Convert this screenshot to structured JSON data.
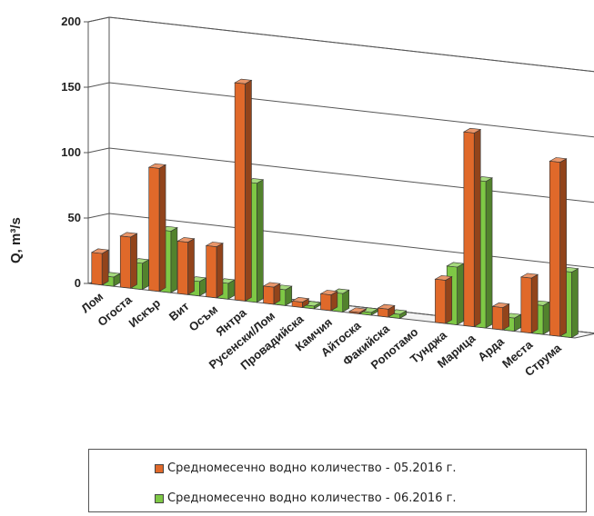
{
  "chart_data": {
    "type": "bar",
    "ylabel": "Q, m³/s",
    "ylim": [
      0,
      200
    ],
    "yticks": [
      "0",
      "50",
      "100",
      "150",
      "200"
    ],
    "categories": [
      "Лом",
      "Огоста",
      "Искър",
      "Вит",
      "Осъм",
      "Янтра",
      "Русенски/Лом",
      "Провадийска",
      "Камчия",
      "Айтоска",
      "Факийска",
      "Ропотамо",
      "Тунджа",
      "Марица",
      "Арда",
      "Места",
      "Струма"
    ],
    "series": [
      {
        "name": "Средномесечно водно количество - 05.2016 г.",
        "color": "#e0692a",
        "values": [
          24,
          39,
          94,
          40,
          39,
          166,
          13,
          4,
          12,
          1,
          6,
          0,
          33,
          148,
          17,
          42,
          133
        ]
      },
      {
        "name": "Средномесечно водно количество - 06.2016 г.",
        "color": "#7ec845",
        "values": [
          7,
          20,
          47,
          11,
          12,
          91,
          12,
          2,
          14,
          2,
          3,
          0,
          44,
          112,
          10,
          22,
          50
        ]
      }
    ],
    "legend_position": "bottom",
    "grid": true,
    "projection": "3d"
  }
}
